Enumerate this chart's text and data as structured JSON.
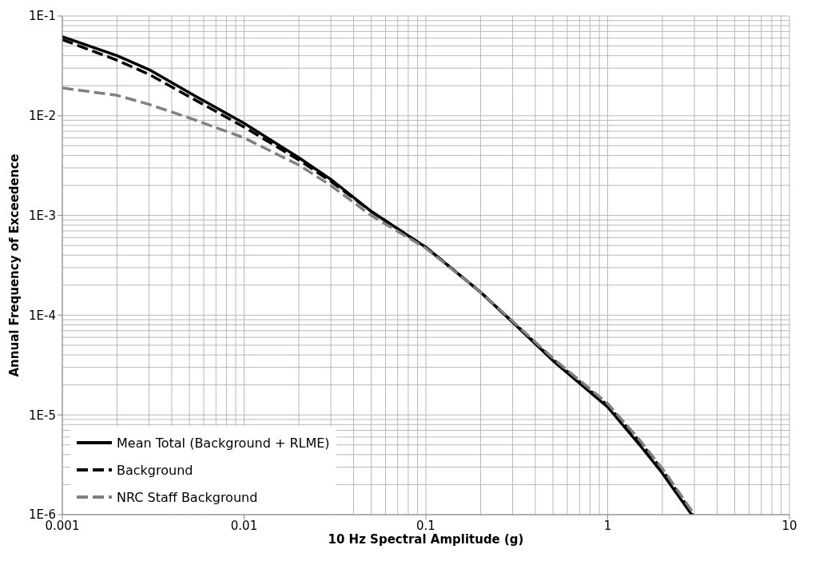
{
  "chart_data": {
    "type": "line",
    "xlabel": "10 Hz Spectral Amplitude (g)",
    "ylabel": "Annual Frequency of Exceedence",
    "log": "xy",
    "grid": true,
    "legend": "bottom left",
    "xlim": [
      0.001,
      10
    ],
    "xticks": [
      0.001,
      0.01,
      0.1,
      1,
      10
    ],
    "ylim": [
      1e-06,
      0.1
    ],
    "yticks": [
      {
        "value": 1e-06,
        "label": "1E-6"
      },
      {
        "value": 1e-05,
        "label": "1E-5"
      },
      {
        "value": 0.0001,
        "label": "1E-4"
      },
      {
        "value": 0.001,
        "label": "1E-3"
      },
      {
        "value": 0.01,
        "label": "1E-2"
      },
      {
        "value": 0.1,
        "label": "1E-1"
      }
    ],
    "series": [
      {
        "name": "Mean Total (Background + RLME)",
        "color": "#000000",
        "line_style": "solid",
        "x": [
          0.001,
          0.002,
          0.003,
          0.005,
          0.01,
          0.02,
          0.03,
          0.05,
          0.1,
          0.2,
          0.3,
          0.5,
          1,
          1.5,
          2,
          2.9
        ],
        "values": [
          0.062,
          0.04,
          0.029,
          0.017,
          0.0084,
          0.0038,
          0.0023,
          0.0011,
          0.00048,
          0.00017,
          8.5e-05,
          3.5e-05,
          1.2e-05,
          5e-06,
          2.6e-06,
          1e-06
        ]
      },
      {
        "name": "Background",
        "color": "#000000",
        "line_style": "dashed",
        "x": [
          0.001,
          0.002,
          0.003,
          0.005,
          0.01,
          0.02,
          0.03,
          0.05,
          0.1,
          0.2,
          0.3,
          0.5,
          1,
          1.5,
          2,
          2.95
        ],
        "values": [
          0.058,
          0.036,
          0.026,
          0.0155,
          0.0077,
          0.0036,
          0.0022,
          0.0011,
          0.00048,
          0.00017,
          8.6e-05,
          3.6e-05,
          1.25e-05,
          5.4e-06,
          2.8e-06,
          1e-06
        ]
      },
      {
        "name": "NRC Staff Background",
        "color": "#808080",
        "line_style": "dashed",
        "x": [
          0.001,
          0.002,
          0.003,
          0.005,
          0.01,
          0.02,
          0.03,
          0.05,
          0.1,
          0.2,
          0.3,
          0.5,
          1,
          1.5,
          2,
          3
        ],
        "values": [
          0.019,
          0.016,
          0.013,
          0.0095,
          0.006,
          0.0032,
          0.002,
          0.001,
          0.00047,
          0.00017,
          8.7e-05,
          3.7e-05,
          1.3e-05,
          5.6e-06,
          2.9e-06,
          1e-06
        ]
      }
    ]
  }
}
